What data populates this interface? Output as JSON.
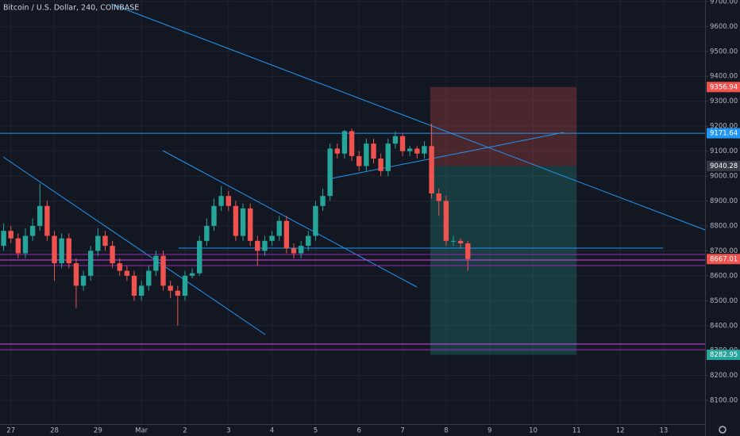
{
  "chart_data": {
    "type": "candlestick",
    "title": "Bitcoin / U.S. Dollar, 240, COINBASE",
    "open": [
      8720,
      8780,
      8750,
      8690,
      8760,
      8800,
      8880,
      8760,
      8650,
      8750,
      8650,
      8560,
      8600,
      8700,
      8760,
      8720,
      8650,
      8620,
      8600,
      8520,
      8560,
      8620,
      8680,
      8560,
      8540,
      8520,
      8600,
      8610,
      8740,
      8800,
      8880,
      8920,
      8880,
      8760,
      8870,
      8740,
      8700,
      8740,
      8760,
      8820,
      8710,
      8690,
      8720,
      8760,
      8880,
      8920,
      9110,
      9090,
      9180,
      9080,
      9040,
      9130,
      9070,
      9020,
      9130,
      9160,
      9100,
      9110,
      9090,
      9120,
      8930,
      8900,
      8740,
      8740,
      8730
    ],
    "high": [
      8810,
      8800,
      8770,
      8790,
      8830,
      8970,
      8900,
      8780,
      8770,
      8770,
      8670,
      8620,
      8720,
      8790,
      8780,
      8740,
      8670,
      8640,
      8620,
      8580,
      8640,
      8700,
      8700,
      8580,
      8560,
      8620,
      8630,
      8760,
      8830,
      8910,
      8960,
      8940,
      8900,
      8890,
      8890,
      8760,
      8760,
      8780,
      8840,
      8840,
      8730,
      8740,
      8780,
      8900,
      8950,
      9130,
      9130,
      9185,
      9190,
      9100,
      9150,
      9150,
      9090,
      9150,
      9180,
      9170,
      9120,
      9120,
      9140,
      9210,
      8950,
      8920,
      8760,
      8750,
      8740
    ],
    "low": [
      8700,
      8730,
      8670,
      8670,
      8740,
      8780,
      8740,
      8580,
      8630,
      8630,
      8470,
      8540,
      8580,
      8680,
      8700,
      8630,
      8600,
      8580,
      8500,
      8500,
      8540,
      8600,
      8540,
      8510,
      8400,
      8500,
      8590,
      8600,
      8720,
      8780,
      8860,
      8860,
      8740,
      8740,
      8720,
      8640,
      8680,
      8720,
      8740,
      8690,
      8670,
      8670,
      8700,
      8740,
      8860,
      8900,
      9070,
      9070,
      9060,
      9020,
      9020,
      9050,
      9000,
      9000,
      9110,
      9080,
      9080,
      9070,
      9070,
      8910,
      8840,
      8720,
      8720,
      8710,
      8620
    ],
    "close": [
      8780,
      8750,
      8690,
      8760,
      8800,
      8880,
      8760,
      8650,
      8750,
      8650,
      8560,
      8600,
      8700,
      8760,
      8720,
      8650,
      8620,
      8600,
      8520,
      8560,
      8620,
      8680,
      8560,
      8540,
      8520,
      8600,
      8610,
      8740,
      8800,
      8880,
      8920,
      8880,
      8760,
      8870,
      8740,
      8700,
      8740,
      8760,
      8820,
      8710,
      8690,
      8720,
      8760,
      8880,
      8920,
      9110,
      9090,
      9180,
      9080,
      9040,
      9130,
      9070,
      9020,
      9130,
      9160,
      9100,
      9110,
      9090,
      9120,
      8930,
      8900,
      8740,
      8740,
      8730,
      8667.01
    ],
    "up_color": "#26a69a",
    "down_color": "#ef5350",
    "xlim": [
      -0.5,
      96.7
    ],
    "xticks": [
      {
        "value": 1,
        "label": "27"
      },
      {
        "value": 7,
        "label": "28"
      },
      {
        "value": 13,
        "label": "29"
      },
      {
        "value": 19,
        "label": "Mar"
      },
      {
        "value": 25,
        "label": "2"
      },
      {
        "value": 31,
        "label": "3"
      },
      {
        "value": 37,
        "label": "4"
      },
      {
        "value": 43,
        "label": "5"
      },
      {
        "value": 49,
        "label": "6"
      },
      {
        "value": 55,
        "label": "7"
      },
      {
        "value": 61,
        "label": "8"
      },
      {
        "value": 67,
        "label": "9"
      },
      {
        "value": 73,
        "label": "10"
      },
      {
        "value": 79,
        "label": "11"
      },
      {
        "value": 85,
        "label": "12"
      },
      {
        "value": 91,
        "label": "13"
      }
    ],
    "ylim": [
      8005,
      9706
    ],
    "yticks": [
      {
        "value": 8100,
        "label": "8100.00"
      },
      {
        "value": 8200,
        "label": "8200.00"
      },
      {
        "value": 8300,
        "label": "8300.00"
      },
      {
        "value": 8400,
        "label": "8400.00"
      },
      {
        "value": 8500,
        "label": "8500.00"
      },
      {
        "value": 8600,
        "label": "8600.00"
      },
      {
        "value": 8700,
        "label": "8700.00"
      },
      {
        "value": 8800,
        "label": "8800.00"
      },
      {
        "value": 8900,
        "label": "8900.00"
      },
      {
        "value": 9000,
        "label": "9000.00"
      },
      {
        "value": 9100,
        "label": "9100.00"
      },
      {
        "value": 9200,
        "label": "9200.00"
      },
      {
        "value": 9300,
        "label": "9300.00"
      },
      {
        "value": 9400,
        "label": "9400.00"
      },
      {
        "value": 9500,
        "label": "9500.00"
      },
      {
        "value": 9600,
        "label": "9600.00"
      },
      {
        "value": 9700,
        "label": "9700.00"
      }
    ],
    "grid": true,
    "price_labels": [
      9356.94,
      9171.64,
      9040.28,
      8667.01,
      8282.95
    ],
    "price_label_colors": [
      "#ef5350",
      "#2196f3",
      "#363a45",
      "#ef5350",
      "#26a69a"
    ]
  }
}
